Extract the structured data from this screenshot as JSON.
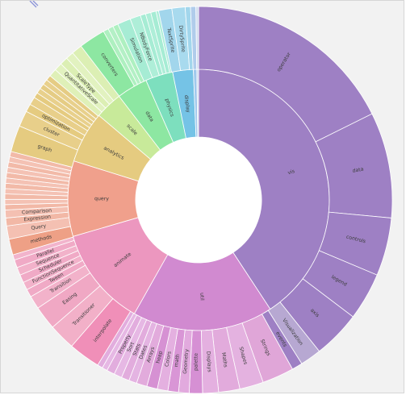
{
  "chart_data": {
    "type": "sunburst",
    "title": "",
    "legend": "none",
    "separator_color": "#ffffff",
    "inner_ring": [
      {
        "label": "vis",
        "value": 96,
        "color": "#9e80c4"
      },
      {
        "label": "util",
        "value": 41,
        "color": "#d18ad0"
      },
      {
        "label": "animate",
        "value": 29,
        "color": "#ec97bf"
      },
      {
        "label": "query",
        "value": 22,
        "color": "#f0a08c"
      },
      {
        "label": "analytics",
        "value": 15,
        "color": "#e5cb80"
      },
      {
        "label": "scale",
        "value": 8,
        "color": "#c8ea9a"
      },
      {
        "label": "data",
        "value": 9,
        "color": "#8de7a2"
      },
      {
        "label": "physics",
        "value": 8,
        "color": "#7ddfbe"
      },
      {
        "label": "display",
        "value": 6,
        "color": "#75c3e6"
      },
      {
        "label": "",
        "value": 1,
        "color": "#a0c8ec"
      },
      {
        "label": "",
        "value": 0.5,
        "color": "#c8d4ec"
      }
    ],
    "outer_ring": [
      {
        "label": "operator",
        "value": 40,
        "color": "#9e80c4"
      },
      {
        "label": "data",
        "value": 20,
        "color": "#9e80c4"
      },
      {
        "label": "controls",
        "value": 11,
        "color": "#9e80c4"
      },
      {
        "label": "legend",
        "value": 9,
        "color": "#9e80c4"
      },
      {
        "label": "axis",
        "value": 9,
        "color": "#9e80c4"
      },
      {
        "label": "Visualization",
        "value": 4,
        "color": "#b7a8d2"
      },
      {
        "label": "events",
        "value": 2,
        "color": "#9e80c4"
      },
      {
        "label": "Strings",
        "value": 6,
        "color": "#e0a6d8"
      },
      {
        "label": "Shapes",
        "value": 4.5,
        "color": "#e4b2e0"
      },
      {
        "label": "Maths",
        "value": 4,
        "color": "#e2abdc"
      },
      {
        "label": "Displays",
        "value": 3,
        "color": "#e4b0e0"
      },
      {
        "label": "palette",
        "value": 2.5,
        "color": "#d690d4"
      },
      {
        "label": "Geometry",
        "value": 2,
        "color": "#e2aade"
      },
      {
        "label": "math",
        "value": 2,
        "color": "#d996d6"
      },
      {
        "label": "Colors",
        "value": 2,
        "color": "#e4b0e0"
      },
      {
        "label": "heap",
        "value": 2,
        "color": "#d691d3"
      },
      {
        "label": "Arrays",
        "value": 2,
        "color": "#e2abdc"
      },
      {
        "label": "Dates",
        "value": 1.5,
        "color": "#e4b4e2"
      },
      {
        "label": "Stats",
        "value": 1.5,
        "color": "#e2acdd"
      },
      {
        "label": "Sort",
        "value": 1.5,
        "color": "#e6b8e4"
      },
      {
        "label": "Property",
        "value": 1.5,
        "color": "#e2adde"
      },
      {
        "label": "",
        "value": 1,
        "color": "#e6b8e4"
      },
      {
        "label": "",
        "value": 1,
        "color": "#e2adde"
      },
      {
        "label": "interpolate",
        "value": 6,
        "color": "#f08fb8"
      },
      {
        "label": "Transitioner",
        "value": 5,
        "color": "#f2b0c8"
      },
      {
        "label": "Easing",
        "value": 4.5,
        "color": "#f0a8c4"
      },
      {
        "label": "Transition",
        "value": 2.5,
        "color": "#f2b2ca"
      },
      {
        "label": "Tween",
        "value": 1.5,
        "color": "#f0aac6"
      },
      {
        "label": "FunctionSequence",
        "value": 1.5,
        "color": "#f2b2ca"
      },
      {
        "label": "Scheduler",
        "value": 1.5,
        "color": "#f0aac6"
      },
      {
        "label": "Sequence",
        "value": 1.5,
        "color": "#f2b2ca"
      },
      {
        "label": "Parallel",
        "value": 1.5,
        "color": "#f0aac6"
      },
      {
        "label": "",
        "value": 1,
        "color": "#f2b4cc"
      },
      {
        "label": "methods",
        "value": 3,
        "color": "#eea086"
      },
      {
        "label": "Query",
        "value": 2.5,
        "color": "#f4c0b2"
      },
      {
        "label": "Expression",
        "value": 1.5,
        "color": "#f2b8a6"
      },
      {
        "label": "Comparison",
        "value": 1.5,
        "color": "#f4c0b2"
      },
      {
        "label": "",
        "value": 1,
        "color": "#f2b8a6"
      },
      {
        "label": "",
        "value": 1,
        "color": "#f4c2b4"
      },
      {
        "label": "",
        "value": 1,
        "color": "#f2baa8"
      },
      {
        "label": "",
        "value": 1,
        "color": "#f4c2b4"
      },
      {
        "label": "",
        "value": 1,
        "color": "#f2baa8"
      },
      {
        "label": "",
        "value": 1,
        "color": "#f4c2b4"
      },
      {
        "label": "",
        "value": 1,
        "color": "#f2baa8"
      },
      {
        "label": "",
        "value": 1,
        "color": "#f4c2b4"
      },
      {
        "label": "",
        "value": 1,
        "color": "#f2baa8"
      },
      {
        "label": "",
        "value": 1,
        "color": "#f4c2b4"
      },
      {
        "label": "",
        "value": 1,
        "color": "#f2baa8"
      },
      {
        "label": "graph",
        "value": 5,
        "color": "#e5cb80"
      },
      {
        "label": "cluster",
        "value": 3,
        "color": "#e8cf8a"
      },
      {
        "label": "optimization",
        "value": 1.5,
        "color": "#e5cb80"
      },
      {
        "label": "",
        "value": 1.5,
        "color": "#e8cf8a"
      },
      {
        "label": "",
        "value": 1,
        "color": "#e5cb80"
      },
      {
        "label": "",
        "value": 1,
        "color": "#e8d08c"
      },
      {
        "label": "",
        "value": 1,
        "color": "#e5cc84"
      },
      {
        "label": "",
        "value": 1,
        "color": "#e8d08c"
      },
      {
        "label": "",
        "value": 1,
        "color": "#e5cc84"
      },
      {
        "label": "",
        "value": 1.5,
        "color": "#dff0b8"
      },
      {
        "label": "QuantitativeScale",
        "value": 1.5,
        "color": "#e2f2c0"
      },
      {
        "label": "ScaleType",
        "value": 1.5,
        "color": "#dcefb4"
      },
      {
        "label": "",
        "value": 1.5,
        "color": "#e2f2c0"
      },
      {
        "label": "",
        "value": 2,
        "color": "#dcefb4"
      },
      {
        "label": "converters",
        "value": 5,
        "color": "#8de7a2"
      },
      {
        "label": "",
        "value": 1,
        "color": "#aef0c0"
      },
      {
        "label": "",
        "value": 1,
        "color": "#b4f0c6"
      },
      {
        "label": "",
        "value": 1,
        "color": "#aef0c0"
      },
      {
        "label": "Simulation",
        "value": 2.5,
        "color": "#a6ecd4"
      },
      {
        "label": "NBodyForce",
        "value": 2,
        "color": "#aeeed8"
      },
      {
        "label": "",
        "value": 1,
        "color": "#a6ecd4"
      },
      {
        "label": "",
        "value": 1,
        "color": "#aeeed8"
      },
      {
        "label": "",
        "value": 1,
        "color": "#a6ecd4"
      },
      {
        "label": "",
        "value": 0.5,
        "color": "#aeeed8"
      },
      {
        "label": "TextSprite",
        "value": 2.5,
        "color": "#a2d6ec"
      },
      {
        "label": "DirtySprite",
        "value": 2.5,
        "color": "#a8daee"
      },
      {
        "label": "",
        "value": 1,
        "color": "#a2d6ec"
      },
      {
        "label": "",
        "value": 1,
        "color": "#b0cceb"
      },
      {
        "label": "",
        "value": 0.5,
        "color": "#d0dcee"
      }
    ]
  }
}
